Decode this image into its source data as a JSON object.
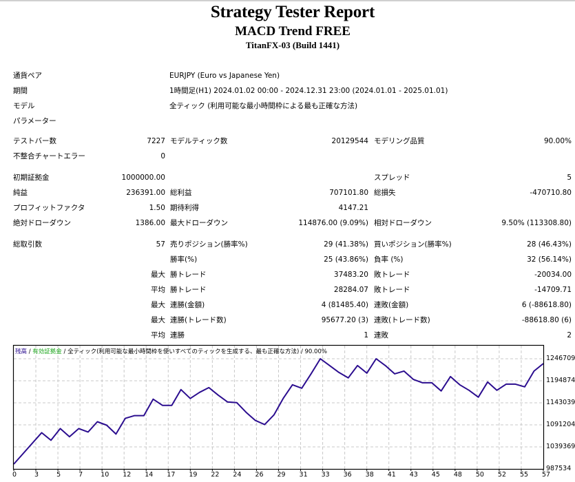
{
  "header": {
    "title": "Strategy Tester Report",
    "expert": "MACD Trend FREE",
    "server": "TitanFX-03 (Build 1441)"
  },
  "info": [
    {
      "label": "通貨ペア",
      "value": "EURJPY (Euro vs Japanese Yen)"
    },
    {
      "label": "期間",
      "value": "1時間足(H1) 2024.01.02 00:00 - 2024.12.31 23:00 (2024.01.01 - 2025.01.01)"
    },
    {
      "label": "モデル",
      "value": "全ティック (利用可能な最小時間枠による最も正確な方法)"
    },
    {
      "label": "パラメーター",
      "value": ""
    }
  ],
  "stats": {
    "bars_label": "テストバー数",
    "bars": "7227",
    "ticks_label": "モデルティック数",
    "ticks": "20129544",
    "quality_label": "モデリング品質",
    "quality": "90.00%",
    "errors_label": "不整合チャートエラー",
    "errors": "0",
    "deposit_label": "初期証拠金",
    "deposit": "1000000.00",
    "spread_label": "スプレッド",
    "spread": "5",
    "net_label": "純益",
    "net": "236391.00",
    "gross_profit_label": "総利益",
    "gross_profit": "707101.80",
    "gross_loss_label": "総損失",
    "gross_loss": "-470710.80",
    "pf_label": "プロフィットファクタ",
    "pf": "1.50",
    "expected_label": "期待利得",
    "expected": "4147.21",
    "abs_dd_label": "絶対ドローダウン",
    "abs_dd": "1386.00",
    "max_dd_label": "最大ドローダウン",
    "max_dd": "114876.00 (9.09%)",
    "rel_dd_label": "相対ドローダウン",
    "rel_dd": "9.50% (113308.80)"
  },
  "trades": {
    "total_label": "総取引数",
    "total": "57",
    "short_label": "売りポジション(勝率%)",
    "short": "29 (41.38%)",
    "long_label": "買いポジション(勝率%)",
    "long": "28 (46.43%)",
    "win_label": "勝率(%)",
    "win": "25 (43.86%)",
    "loss_label": "負率 (%)",
    "loss": "32 (56.14%)",
    "rows": [
      {
        "prefix": "最大",
        "l1": "勝トレード",
        "v1": "37483.20",
        "l2": "敗トレード",
        "v2": "-20034.00"
      },
      {
        "prefix": "平均",
        "l1": "勝トレード",
        "v1": "28284.07",
        "l2": "敗トレード",
        "v2": "-14709.71"
      },
      {
        "prefix": "最大",
        "l1": "連勝(金額)",
        "v1": "4 (81485.40)",
        "l2": "連敗(金額)",
        "v2": "6 (-88618.80)"
      },
      {
        "prefix": "最大",
        "l1": "連勝(トレード数)",
        "v1": "95677.20 (3)",
        "l2": "連敗(トレード数)",
        "v2": "-88618.80 (6)"
      },
      {
        "prefix": "平均",
        "l1": "連勝",
        "v1": "1",
        "l2": "連敗",
        "v2": "2"
      }
    ]
  },
  "chart": {
    "legend_balance": "残高",
    "legend_sep1": " / ",
    "legend_equity": "有効証拠金",
    "legend_rest": " / 全ティック(利用可能な最小時間枠を使いすべてのティックを生成する、最も正確な方法) / 90.00%",
    "line_color": "#2b0d8f",
    "equity_color": "#1aa51a"
  },
  "chart_data": {
    "type": "line",
    "title": "残高 / 有効証拠金 / 全ティック(利用可能な最小時間枠を使いすべてのティックを生成する、最も正確な方法) / 90.00%",
    "xlabel": "",
    "ylabel": "",
    "x_ticks": [
      "0",
      "3",
      "5",
      "7",
      "10",
      "12",
      "14",
      "17",
      "19",
      "22",
      "24",
      "26",
      "29",
      "31",
      "33",
      "36",
      "38",
      "41",
      "43",
      "45",
      "48",
      "50",
      "52",
      "55",
      "57"
    ],
    "y_ticks": [
      "987534",
      "1039369",
      "1091204",
      "1143039",
      "1194874",
      "1246709"
    ],
    "ylim": [
      987534,
      1272626
    ],
    "xlim": [
      0,
      57
    ],
    "grid": true,
    "series": [
      {
        "name": "残高",
        "x": [
          0,
          3,
          4,
          5,
          6,
          7,
          8,
          9,
          10,
          11,
          12,
          13,
          14,
          15,
          16,
          17,
          18,
          19,
          20,
          21,
          22,
          23,
          24,
          25,
          26,
          27,
          28,
          29,
          30,
          31,
          32,
          33,
          34,
          35,
          36,
          37,
          38,
          39,
          40,
          41,
          42,
          43,
          44,
          45,
          46,
          47,
          48,
          49,
          50,
          51,
          52,
          53,
          54,
          55,
          56,
          57
        ],
        "values": [
          998800,
          1072800,
          1055000,
          1082400,
          1063100,
          1082400,
          1074300,
          1098500,
          1090400,
          1069500,
          1106500,
          1112900,
          1112900,
          1151600,
          1137100,
          1137100,
          1174100,
          1153200,
          1167700,
          1178900,
          1161200,
          1145100,
          1143500,
          1120900,
          1101600,
          1091900,
          1114500,
          1153200,
          1185400,
          1177400,
          1211200,
          1246700,
          1230600,
          1214500,
          1201600,
          1230600,
          1212900,
          1246700,
          1230600,
          1211200,
          1217700,
          1198300,
          1190200,
          1190200,
          1170900,
          1204700,
          1185400,
          1172500,
          1156400,
          1191900,
          1172500,
          1187000,
          1187000,
          1180600,
          1217700,
          1235400
        ]
      }
    ]
  }
}
